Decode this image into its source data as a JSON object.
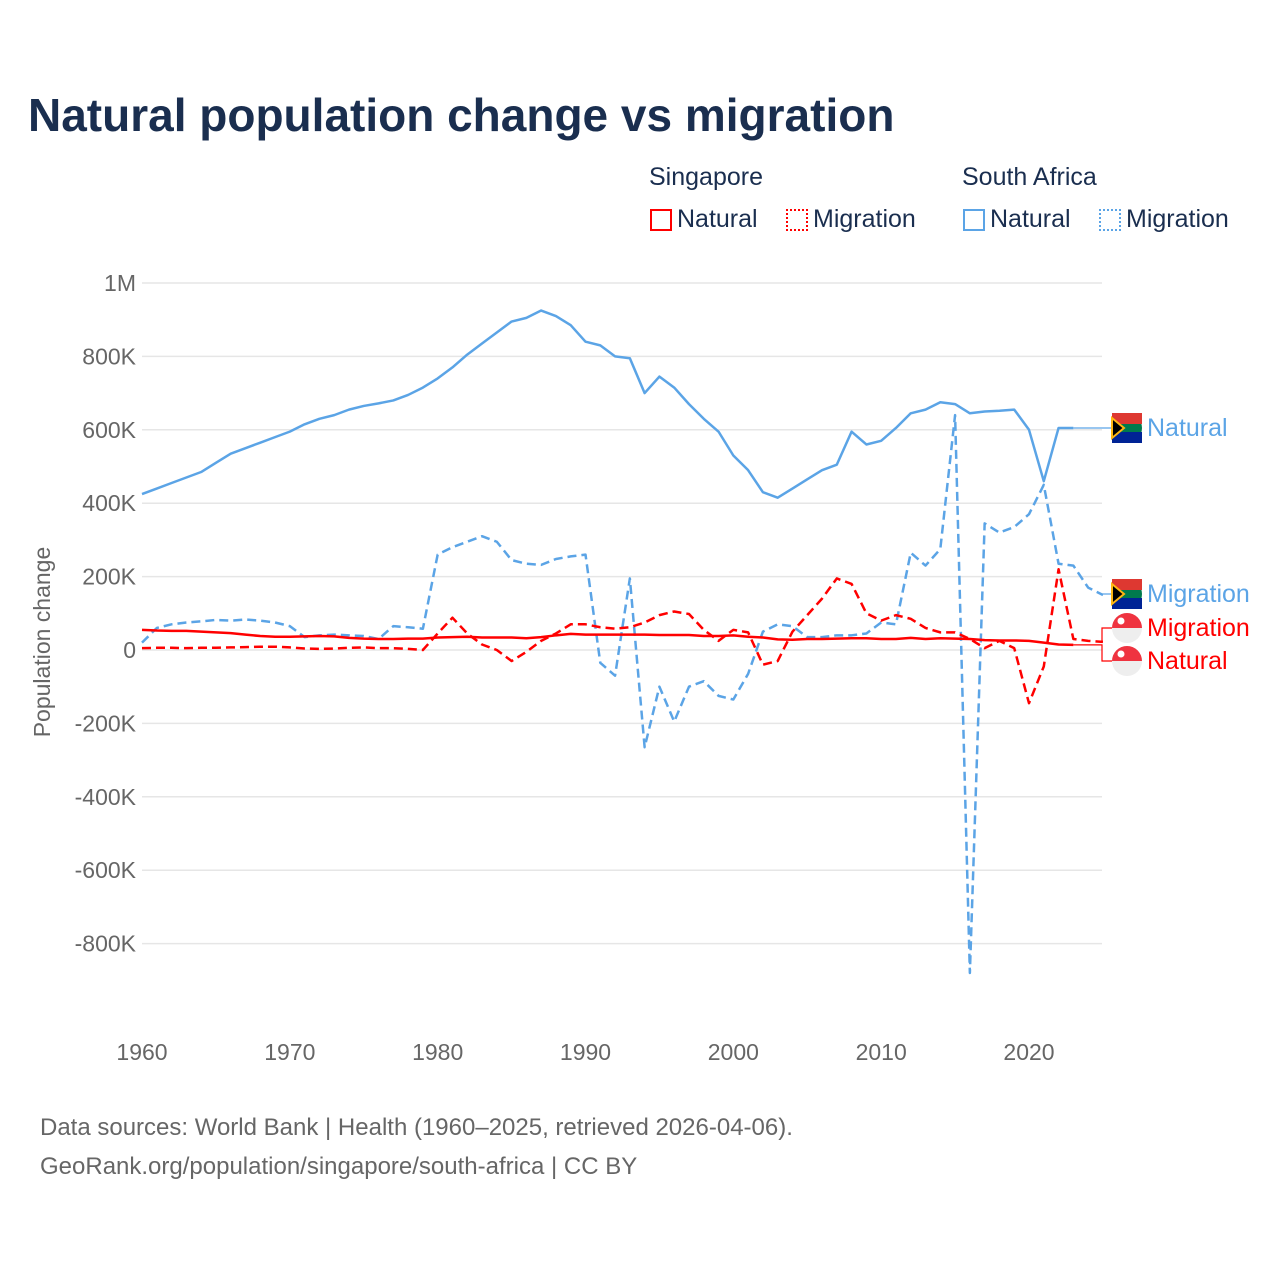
{
  "title": "Natural population change vs migration",
  "legend": {
    "groups": [
      {
        "name": "Singapore",
        "items": [
          "Natural",
          "Migration"
        ],
        "color": "#ff0000"
      },
      {
        "name": "South Africa",
        "items": [
          "Natural",
          "Migration"
        ],
        "color": "#5ba4e6"
      }
    ]
  },
  "source_lines": [
    "Data sources: World Bank | Health (1960–2025, retrieved 2026-04-06).",
    "GeoRank.org/population/singapore/south-africa | CC BY"
  ],
  "end_labels": {
    "sa_natural": "Natural",
    "sa_migration": "Migration",
    "sg_migration": "Migration",
    "sg_natural": "Natural"
  },
  "chart_data": {
    "type": "line",
    "title": "Natural population change vs migration",
    "xlabel": "",
    "ylabel": "Population change",
    "xlim": [
      1960,
      2025
    ],
    "ylim": [
      -1000000,
      1000000
    ],
    "x_ticks": [
      1960,
      1970,
      1980,
      1990,
      2000,
      2010,
      2020
    ],
    "y_ticks": [
      {
        "v": 1000000,
        "l": "1M"
      },
      {
        "v": 800000,
        "l": "800K"
      },
      {
        "v": 600000,
        "l": "600K"
      },
      {
        "v": 400000,
        "l": "400K"
      },
      {
        "v": 200000,
        "l": "200K"
      },
      {
        "v": 0,
        "l": "0"
      },
      {
        "v": -200000,
        "l": "-200K"
      },
      {
        "v": -400000,
        "l": "-400K"
      },
      {
        "v": -600000,
        "l": "-600K"
      },
      {
        "v": -800000,
        "l": "-800K"
      }
    ],
    "grid": true,
    "legend_position": "top-right",
    "units": "thousands",
    "series": [
      {
        "key": "sa_natural",
        "name": "South Africa Natural",
        "color": "#5ba4e6",
        "dash": false,
        "start": 1960,
        "values": [
          425,
          440,
          455,
          470,
          485,
          510,
          535,
          550,
          565,
          580,
          595,
          615,
          630,
          640,
          655,
          665,
          672,
          680,
          695,
          715,
          740,
          770,
          805,
          835,
          865,
          895,
          905,
          925,
          910,
          885,
          840,
          830,
          800,
          795,
          700,
          745,
          715,
          670,
          630,
          595,
          530,
          490,
          430,
          415,
          440,
          465,
          490,
          505,
          595,
          560,
          570,
          605,
          645,
          655,
          675,
          670,
          645,
          650,
          652,
          655,
          600,
          460,
          605,
          605
        ]
      },
      {
        "key": "sa_migration",
        "name": "South Africa Migration",
        "color": "#5ba4e6",
        "dash": true,
        "start": 1960,
        "values": [
          20,
          60,
          70,
          75,
          78,
          82,
          80,
          83,
          80,
          75,
          65,
          35,
          40,
          42,
          40,
          38,
          30,
          65,
          62,
          58,
          260,
          280,
          295,
          310,
          295,
          245,
          235,
          232,
          248,
          255,
          260,
          -35,
          -70,
          195,
          -265,
          -100,
          -195,
          -100,
          -85,
          -125,
          -135,
          -65,
          50,
          70,
          65,
          35,
          35,
          40,
          40,
          45,
          75,
          70,
          265,
          230,
          275,
          640,
          -880,
          345,
          320,
          335,
          370,
          450,
          235,
          230,
          170,
          150
        ]
      },
      {
        "key": "sg_natural",
        "name": "Singapore Natural",
        "color": "#ff0000",
        "dash": false,
        "start": 1960,
        "values": [
          55,
          53,
          52,
          52,
          50,
          48,
          46,
          42,
          38,
          36,
          36,
          37,
          38,
          37,
          33,
          31,
          30,
          30,
          31,
          31,
          34,
          35,
          36,
          34,
          34,
          34,
          32,
          35,
          40,
          44,
          42,
          42,
          42,
          42,
          42,
          41,
          41,
          41,
          38,
          38,
          40,
          36,
          34,
          29,
          28,
          30,
          30,
          31,
          32,
          32,
          30,
          30,
          33,
          30,
          32,
          31,
          30,
          27,
          26,
          26,
          25,
          20,
          15,
          14
        ]
      },
      {
        "key": "sg_migration",
        "name": "Singapore Migration",
        "color": "#ff0000",
        "dash": true,
        "start": 1960,
        "values": [
          5,
          6,
          6,
          5,
          6,
          6,
          7,
          8,
          9,
          9,
          7,
          4,
          3,
          4,
          6,
          7,
          5,
          5,
          3,
          0,
          45,
          88,
          45,
          15,
          0,
          -30,
          -5,
          25,
          45,
          70,
          70,
          62,
          58,
          62,
          75,
          95,
          105,
          98,
          55,
          25,
          55,
          48,
          -40,
          -30,
          50,
          95,
          140,
          195,
          180,
          100,
          80,
          95,
          85,
          60,
          48,
          48,
          30,
          5,
          25,
          5,
          -145,
          -45,
          220,
          30,
          25,
          22
        ]
      }
    ]
  }
}
